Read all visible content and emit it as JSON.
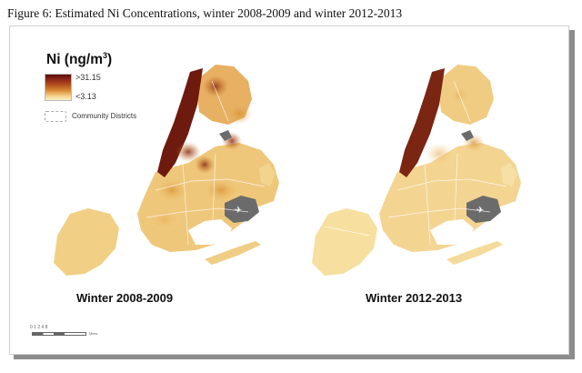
{
  "figure": {
    "title": "Figure 6:  Estimated Ni Concentrations, winter 2008-2009 and winter 2012-2013"
  },
  "legend": {
    "title": "Ni (ng/m",
    "title_superscript": "3",
    "title_close": ")",
    "high_label": ">31.15",
    "low_label": "<3.13",
    "districts_label": "Community Districts",
    "ramp_colors": [
      "#5e0a0b",
      "#a33a1d",
      "#d4822e",
      "#f6d48e",
      "#fbf0c4"
    ]
  },
  "maps": [
    {
      "label": "Winter 2008-2009"
    },
    {
      "label": "Winter 2012-2013"
    }
  ],
  "scale_bar": {
    "ticks": "0  1  2      4           8",
    "unit": "Miles"
  },
  "colors": {
    "low": "#f5dc98",
    "high": "#5e0a0b",
    "airport": "#6b6b6b",
    "boundary": "#ffffff"
  }
}
